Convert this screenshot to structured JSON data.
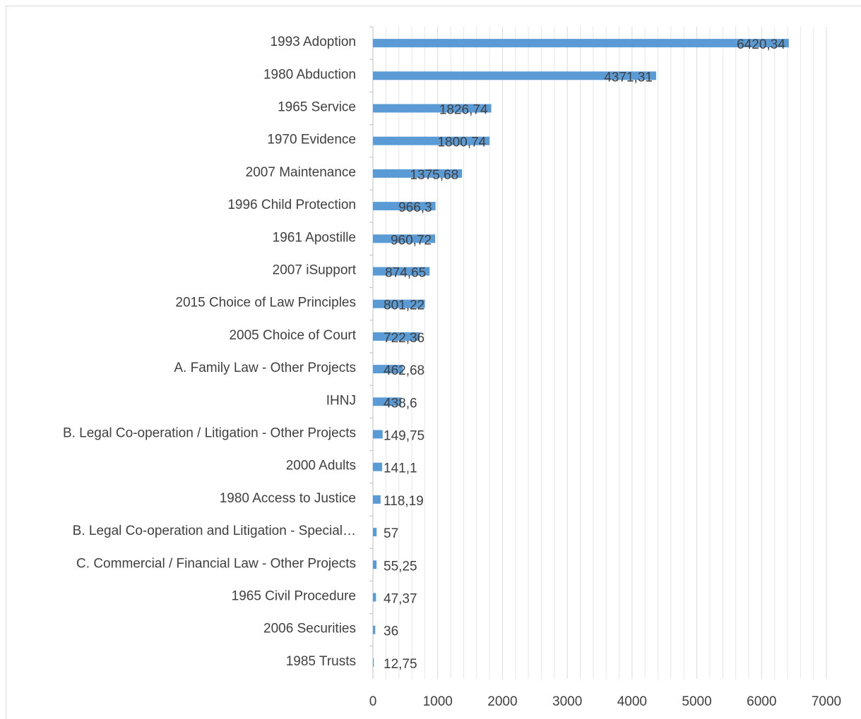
{
  "chart_data": {
    "type": "barh",
    "categories": [
      "1993 Adoption",
      "1980 Abduction",
      "1965 Service",
      "1970 Evidence",
      "2007 Maintenance",
      "1996 Child Protection",
      "1961 Apostille",
      "2007 iSupport",
      "2015 Choice of Law Principles",
      "2005 Choice of Court",
      "A. Family Law - Other Projects",
      "IHNJ",
      "B. Legal Co-operation / Litigation - Other Projects",
      "2000 Adults",
      "1980 Access to Justice",
      "B. Legal Co-operation and Litigation - Special…",
      "C. Commercial / Financial Law - Other Projects",
      "1965 Civil Procedure",
      "2006 Securities",
      "1985 Trusts"
    ],
    "values": [
      6420.34,
      4371.31,
      1826.74,
      1800.74,
      1375.68,
      966.3,
      960.72,
      874.65,
      801.22,
      722.36,
      462.68,
      438.6,
      149.75,
      141.1,
      118.19,
      57,
      55.25,
      47.37,
      36,
      12.75
    ],
    "value_labels": [
      "6420,34",
      "4371,31",
      "1826,74",
      "1800,74",
      "1375,68",
      "966,3",
      "960,72",
      "874,65",
      "801,22",
      "722,36",
      "462,68",
      "438,6",
      "149,75",
      "141,1",
      "118,19",
      "57",
      "55,25",
      "47,37",
      "36",
      "12,75"
    ],
    "color": "#5b9bd5",
    "xlim": [
      0,
      7000
    ],
    "xticks": [
      0,
      1000,
      2000,
      3000,
      4000,
      5000,
      6000,
      7000
    ],
    "minor_xticks": [
      200,
      400,
      600,
      800,
      1200,
      1400,
      1600,
      1800,
      2200,
      2400,
      2600,
      2800,
      3200,
      3400,
      3600,
      3800,
      4200,
      4400,
      4600,
      4800,
      5200,
      5400,
      5600,
      5800,
      6200,
      6400,
      6600,
      6800
    ],
    "grid": true
  }
}
